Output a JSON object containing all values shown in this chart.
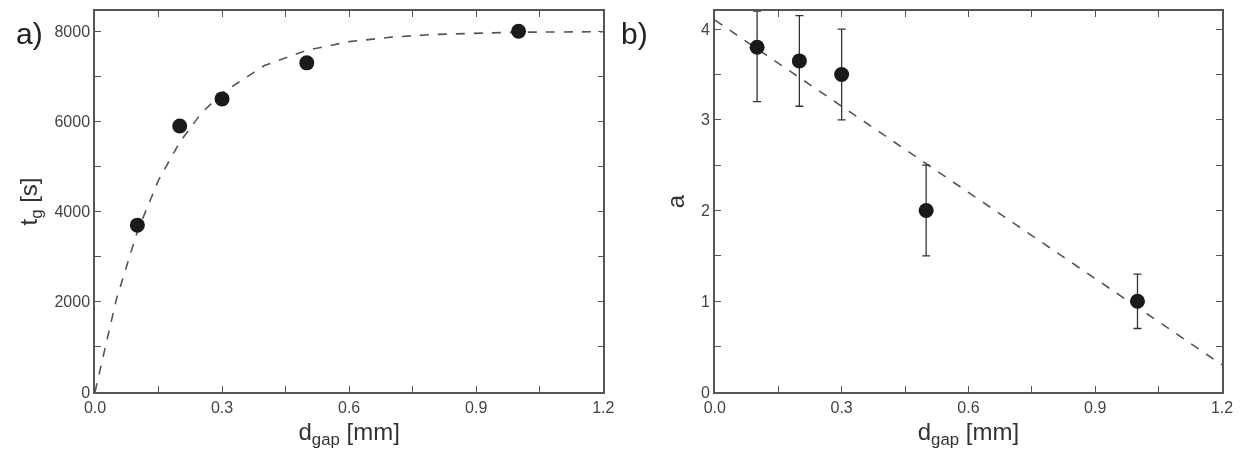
{
  "chart_data": [
    {
      "type": "scatter",
      "xlabel": "d$_{gap}$ [mm]",
      "ylabel": "t$_{g}$ [s]",
      "annotations": [
        "a)"
      ],
      "xlim": [
        0,
        1.2
      ],
      "ylim": [
        0,
        8450
      ],
      "xticks": [
        {
          "value": 0,
          "label": "0.0"
        },
        {
          "value": 0.15,
          "label": null
        },
        0.3,
        {
          "value": 0.45,
          "label": null
        },
        0.6,
        {
          "value": 0.75,
          "label": null
        },
        0.9,
        {
          "value": 1.05,
          "label": null
        },
        1.2
      ],
      "yticks": [
        0,
        {
          "value": 1000,
          "label": null
        },
        2000,
        {
          "value": 3000,
          "label": null
        },
        4000,
        {
          "value": 5000,
          "label": null
        },
        6000,
        {
          "value": 7000,
          "label": null
        },
        8000
      ],
      "series": [
        {
          "type": "line",
          "marker": "none",
          "color": "#555555",
          "line_style": "dashed",
          "x": [
            0,
            0.05,
            0.1,
            0.15,
            0.2,
            0.25,
            0.3,
            0.4,
            0.5,
            0.6,
            0.7,
            0.8,
            1.0,
            1.2
          ],
          "values": [
            0,
            2040,
            3560,
            4700,
            5540,
            6170,
            6630,
            7240,
            7580,
            7770,
            7870,
            7930,
            7980,
            7990
          ]
        },
        {
          "marker": "circle",
          "color": "#1a1a1a",
          "x": [
            0.1,
            0.2,
            0.3,
            0.5,
            1.0
          ],
          "values": [
            3700,
            5900,
            6500,
            7300,
            8000
          ]
        }
      ]
    },
    {
      "type": "scatter",
      "xlabel": "d$_{gap}$ [mm]",
      "ylabel": "a",
      "annotations": [
        "b)"
      ],
      "xlim": [
        0,
        1.2
      ],
      "ylim": [
        0,
        4.2
      ],
      "xticks": [
        {
          "value": 0,
          "label": "0.0"
        },
        {
          "value": 0.15,
          "label": null
        },
        0.3,
        {
          "value": 0.45,
          "label": null
        },
        0.6,
        {
          "value": 0.75,
          "label": null
        },
        0.9,
        {
          "value": 1.05,
          "label": null
        },
        1.2
      ],
      "yticks": [
        0,
        {
          "value": 0.5,
          "label": null
        },
        1,
        {
          "value": 1.5,
          "label": null
        },
        2,
        {
          "value": 2.5,
          "label": null
        },
        3,
        {
          "value": 3.5,
          "label": null
        },
        4
      ],
      "series": [
        {
          "type": "line",
          "marker": "none",
          "color": "#555555",
          "line_style": "dashed",
          "x": [
            0,
            1.2
          ],
          "values": [
            4.1,
            0.3
          ]
        },
        {
          "marker": "circle",
          "color": "#1a1a1a",
          "x": [
            0.1,
            0.2,
            0.3,
            0.5,
            1.0
          ],
          "values": [
            3.8,
            3.65,
            3.5,
            2.0,
            1.0
          ],
          "errors": [
            [
              3.2,
              4.2
            ],
            0.5,
            0.5,
            0.5,
            0.3
          ]
        }
      ]
    }
  ]
}
